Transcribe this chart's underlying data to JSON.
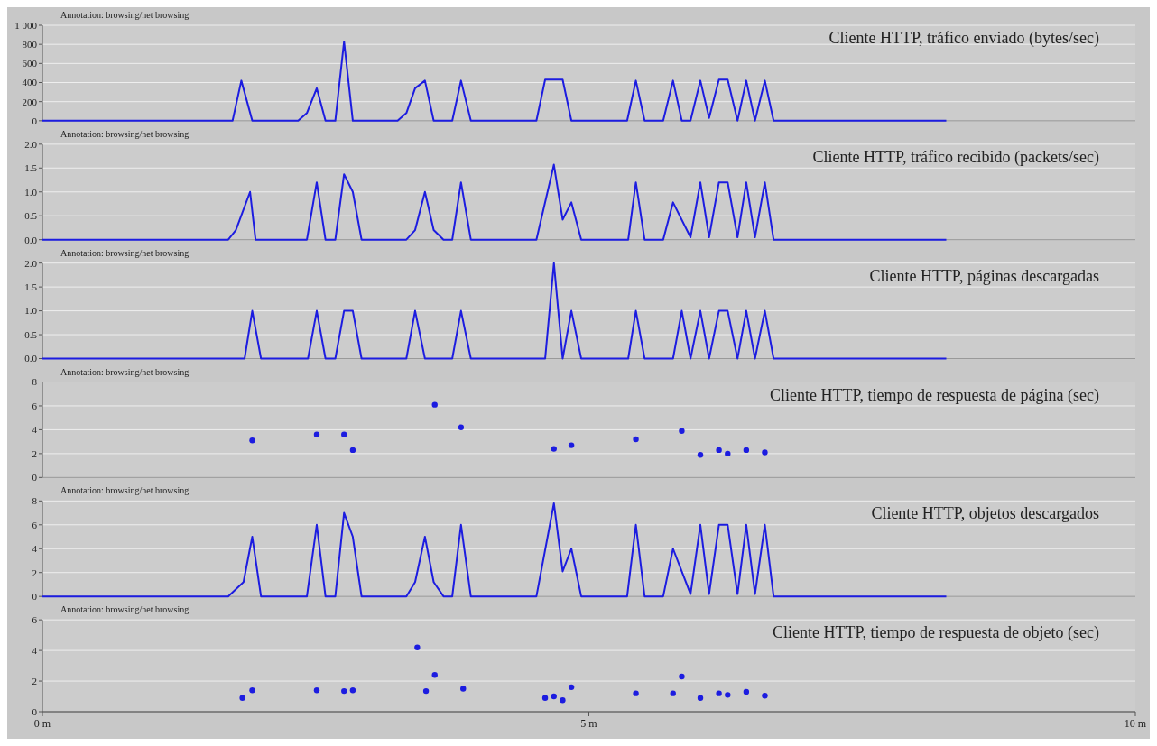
{
  "chart_data": [
    {
      "type": "line",
      "title": "Cliente HTTP, tráfico enviado (bytes/sec)",
      "annotations": [
        "Annotation: browsing/net browsing"
      ],
      "xlim": [
        0,
        10
      ],
      "ylim": [
        0,
        1000
      ],
      "yticks": [
        0,
        200,
        400,
        600,
        800,
        {
          "value": 1000,
          "label": "1 000"
        }
      ],
      "grid": "y",
      "tick_labels": "y",
      "series": [
        {
          "color": "#1c1ce0",
          "x": [
            0,
            1.74,
            1.82,
            1.92,
            2.34,
            2.42,
            2.51,
            2.59,
            2.68,
            2.76,
            2.84,
            3.25,
            3.33,
            3.41,
            3.5,
            3.58,
            3.75,
            3.83,
            3.92,
            4.52,
            4.6,
            4.76,
            4.84,
            5.35,
            5.43,
            5.51,
            5.68,
            5.77,
            5.85,
            5.93,
            6.02,
            6.1,
            6.19,
            6.27,
            6.36,
            6.44,
            6.52,
            6.61,
            6.69,
            8.27
          ],
          "values": [
            0,
            0,
            420,
            0,
            0,
            80,
            340,
            0,
            0,
            830,
            0,
            0,
            80,
            340,
            420,
            0,
            0,
            420,
            0,
            0,
            430,
            430,
            0,
            0,
            420,
            0,
            0,
            420,
            0,
            0,
            420,
            30,
            430,
            430,
            0,
            420,
            0,
            420,
            0,
            0
          ]
        }
      ]
    },
    {
      "type": "line",
      "title": "Cliente HTTP, tráfico recibido (packets/sec)",
      "annotations": [
        "Annotation: browsing/net browsing"
      ],
      "xlim": [
        0,
        10
      ],
      "ylim": [
        0,
        2
      ],
      "yticks": [
        {
          "value": 0,
          "label": "0.0"
        },
        {
          "value": 0.5,
          "label": "0.5"
        },
        {
          "value": 1,
          "label": "1.0"
        },
        {
          "value": 1.5,
          "label": "1.5"
        },
        {
          "value": 2,
          "label": "2.0"
        }
      ],
      "grid": "y",
      "tick_labels": "y",
      "series": [
        {
          "color": "#1c1ce0",
          "x": [
            0,
            1.7,
            1.77,
            1.9,
            1.95,
            2.42,
            2.51,
            2.59,
            2.68,
            2.76,
            2.84,
            2.92,
            3.33,
            3.41,
            3.5,
            3.58,
            3.67,
            3.75,
            3.83,
            3.92,
            4.52,
            4.68,
            4.76,
            4.84,
            4.93,
            5.36,
            5.43,
            5.51,
            5.68,
            5.77,
            5.93,
            6.02,
            6.1,
            6.19,
            6.27,
            6.36,
            6.44,
            6.52,
            6.61,
            6.69,
            8.27
          ],
          "values": [
            0,
            0,
            0.2,
            1.0,
            0,
            0,
            1.2,
            0,
            0,
            1.37,
            1.0,
            0,
            0,
            0.2,
            1.0,
            0.2,
            0,
            0,
            1.2,
            0,
            0,
            1.57,
            0.42,
            0.78,
            0,
            0,
            1.2,
            0,
            0,
            0.78,
            0.05,
            1.2,
            0.05,
            1.2,
            1.2,
            0.05,
            1.2,
            0.05,
            1.2,
            0,
            0
          ]
        }
      ]
    },
    {
      "type": "line",
      "title": "Cliente HTTP, páginas descargadas",
      "annotations": [
        "Annotation: browsing/net browsing"
      ],
      "xlim": [
        0,
        10
      ],
      "ylim": [
        0,
        2
      ],
      "yticks": [
        {
          "value": 0,
          "label": "0.0"
        },
        {
          "value": 0.5,
          "label": "0.5"
        },
        {
          "value": 1,
          "label": "1.0"
        },
        {
          "value": 1.5,
          "label": "1.5"
        },
        {
          "value": 2,
          "label": "2.0"
        }
      ],
      "grid": "y",
      "tick_labels": "y",
      "series": [
        {
          "color": "#1c1ce0",
          "x": [
            0,
            1.85,
            1.92,
            2.0,
            2.43,
            2.51,
            2.59,
            2.68,
            2.76,
            2.84,
            2.92,
            3.33,
            3.41,
            3.5,
            3.75,
            3.83,
            3.92,
            4.6,
            4.68,
            4.76,
            4.84,
            4.93,
            5.36,
            5.43,
            5.51,
            5.77,
            5.85,
            5.93,
            6.02,
            6.1,
            6.19,
            6.27,
            6.36,
            6.44,
            6.52,
            6.61,
            6.69,
            8.27
          ],
          "values": [
            0,
            0,
            1,
            0,
            0,
            1,
            0,
            0,
            1,
            1,
            0,
            0,
            1,
            0,
            0,
            1,
            0,
            0,
            2,
            0,
            1,
            0,
            0,
            1,
            0,
            0,
            1,
            0,
            1,
            0,
            1,
            1,
            0,
            1,
            0,
            1,
            0,
            0
          ]
        }
      ]
    },
    {
      "type": "scatter",
      "title": "Cliente HTTP, tiempo de respuesta de página  (sec)",
      "annotations": [
        "Annotation: browsing/net browsing"
      ],
      "xlim": [
        0,
        10
      ],
      "ylim": [
        0,
        8
      ],
      "yticks": [
        0,
        2,
        4,
        6,
        8
      ],
      "grid": "y",
      "tick_labels": "y",
      "marker": "circle",
      "series": [
        {
          "color": "#1c1ce0",
          "x": [
            1.92,
            2.51,
            2.76,
            2.84,
            3.59,
            3.83,
            4.68,
            4.84,
            5.43,
            5.85,
            6.02,
            6.19,
            6.27,
            6.44,
            6.61
          ],
          "values": [
            3.1,
            3.6,
            3.6,
            2.3,
            6.1,
            4.2,
            2.4,
            2.7,
            3.2,
            3.9,
            1.9,
            2.3,
            2.0,
            2.3,
            2.1
          ]
        }
      ]
    },
    {
      "type": "line",
      "title": "Cliente HTTP, objetos descargados",
      "annotations": [
        "Annotation: browsing/net browsing"
      ],
      "xlim": [
        0,
        10
      ],
      "ylim": [
        0,
        8
      ],
      "yticks": [
        0,
        2,
        4,
        6,
        8
      ],
      "grid": "y",
      "tick_labels": "y",
      "series": [
        {
          "color": "#1c1ce0",
          "x": [
            0,
            1.7,
            1.84,
            1.92,
            2.0,
            2.42,
            2.51,
            2.59,
            2.68,
            2.76,
            2.84,
            2.92,
            3.33,
            3.41,
            3.5,
            3.58,
            3.67,
            3.75,
            3.83,
            3.92,
            4.52,
            4.68,
            4.76,
            4.84,
            4.93,
            5.35,
            5.43,
            5.51,
            5.68,
            5.77,
            5.93,
            6.02,
            6.1,
            6.19,
            6.27,
            6.36,
            6.44,
            6.52,
            6.61,
            6.69,
            8.27
          ],
          "values": [
            0,
            0,
            1.2,
            5,
            0,
            0,
            6,
            0,
            0,
            7,
            5,
            0,
            0,
            1.2,
            5,
            1.2,
            0,
            0,
            6,
            0,
            0,
            7.8,
            2.1,
            4,
            0,
            0,
            6,
            0,
            0,
            4,
            0.2,
            6,
            0.2,
            6,
            6,
            0.2,
            6,
            0.2,
            6,
            0,
            0
          ]
        }
      ]
    },
    {
      "type": "scatter",
      "title": "Cliente HTTP, tiempo de respuesta de objeto  (sec)",
      "annotations": [
        "Annotation: browsing/net browsing"
      ],
      "xlim": [
        0,
        10
      ],
      "xticks": [
        {
          "value": 0,
          "label": "0 m"
        },
        {
          "value": 5,
          "label": "5 m"
        },
        {
          "value": 10,
          "label": "10 m"
        }
      ],
      "ylim": [
        0,
        6
      ],
      "yticks": [
        0,
        2,
        4,
        6
      ],
      "grid": "y",
      "marker": "circle",
      "series": [
        {
          "color": "#1c1ce0",
          "x": [
            1.83,
            1.92,
            2.51,
            2.76,
            2.84,
            3.43,
            3.51,
            3.59,
            3.85,
            4.6,
            4.68,
            4.76,
            4.84,
            5.43,
            5.77,
            5.85,
            6.02,
            6.19,
            6.27,
            6.44,
            6.61
          ],
          "values": [
            0.9,
            1.4,
            1.4,
            1.35,
            1.4,
            4.2,
            1.35,
            2.4,
            1.5,
            0.9,
            1.0,
            0.75,
            1.6,
            1.2,
            1.2,
            2.3,
            0.9,
            1.2,
            1.1,
            1.3,
            1.05
          ]
        }
      ]
    }
  ]
}
